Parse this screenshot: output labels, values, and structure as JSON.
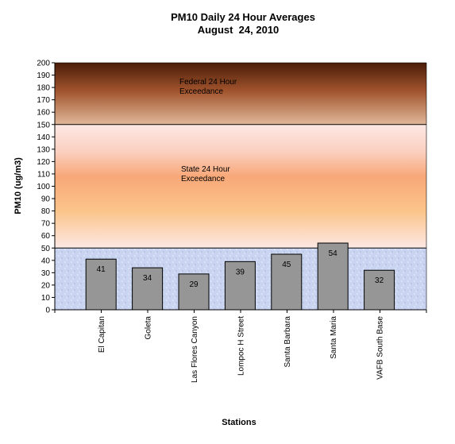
{
  "chart_data": {
    "type": "bar",
    "title": "PM10 Daily 24 Hour Averages",
    "subtitle": "August  24, 2010",
    "xlabel": "Stations",
    "ylabel": "PM10 (ug/m3)",
    "ylim": [
      0,
      200
    ],
    "ytick_step": 10,
    "categories": [
      "El Capitan",
      "Goleta",
      "Las Flores Canyon",
      "Lompoc H Street",
      "Santa Barbara",
      "Santa Maria",
      "VAFB South Base"
    ],
    "values": [
      41,
      34,
      29,
      39,
      45,
      54,
      32
    ],
    "bar_color": "#969696",
    "thresholds": [
      {
        "value": 150,
        "label_line1": "Federal 24 Hour",
        "label_line2": "Exceedance",
        "band": [
          150,
          200
        ]
      },
      {
        "value": 50,
        "label_line1": "State 24 Hour",
        "label_line2": "Exceedance",
        "band": [
          50,
          150
        ]
      }
    ],
    "band_colors": {
      "federal_top": "#4a1c08",
      "federal_bottom": "#e0b89a",
      "state_mid": "#f8a878",
      "state_edge": "#fce8e4",
      "good": "#c8d4f0"
    },
    "grid": false,
    "legend": "none"
  }
}
